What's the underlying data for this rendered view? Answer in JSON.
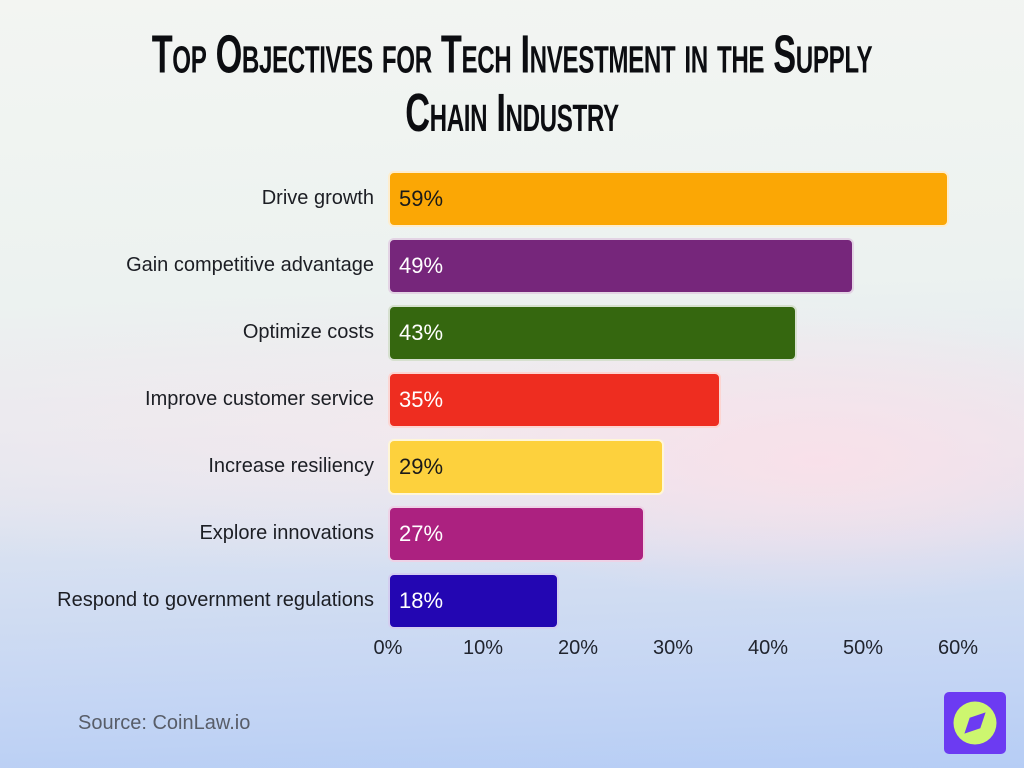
{
  "header": {
    "title_lines": [
      "Top Objectives for Tech Investment in the Supply",
      "Chain Industry"
    ]
  },
  "chart_data": {
    "type": "bar",
    "orientation": "horizontal",
    "title": "Top Objectives for Tech Investment in the Supply Chain Industry",
    "categories": [
      "Drive growth",
      "Gain competitive advantage",
      "Optimize costs",
      "Improve customer service",
      "Increase resiliency",
      "Explore innovations",
      "Respond to government regulations"
    ],
    "values": [
      59,
      49,
      43,
      35,
      29,
      27,
      18
    ],
    "rows": [
      {
        "label": "Drive growth",
        "value": 59,
        "value_label": "59%",
        "color": "#FBA705",
        "text_color": "#1A1A1A"
      },
      {
        "label": "Gain competitive advantage",
        "value": 49,
        "value_label": "49%",
        "color": "#76267B",
        "text_color": "#FFFFFF"
      },
      {
        "label": "Optimize costs",
        "value": 43,
        "value_label": "43%",
        "color": "#35670F",
        "text_color": "#FFFFFF"
      },
      {
        "label": "Improve customer service",
        "value": 35,
        "value_label": "35%",
        "color": "#EE2D20",
        "text_color": "#FFFFFF"
      },
      {
        "label": "Increase resiliency",
        "value": 29,
        "value_label": "29%",
        "color": "#FDD13D",
        "text_color": "#1A1A1A"
      },
      {
        "label": "Explore innovations",
        "value": 27,
        "value_label": "27%",
        "color": "#AC2180",
        "text_color": "#FFFFFF"
      },
      {
        "label": "Respond to government regulations",
        "value": 18,
        "value_label": "18%",
        "color": "#2306B2",
        "text_color": "#FFFFFF"
      }
    ],
    "x_ticks": [
      "0%",
      "10%",
      "20%",
      "30%",
      "40%",
      "50%",
      "60%"
    ],
    "xlim": [
      0,
      60
    ],
    "grid": false,
    "legend": false,
    "value_labels_position": "inside-left"
  },
  "footer": {
    "source": "Source: CoinLaw.io"
  },
  "logo": {
    "name": "coinlaw-logo",
    "bg_color": "#6C3BF2",
    "circle_color": "#CDF66F"
  }
}
